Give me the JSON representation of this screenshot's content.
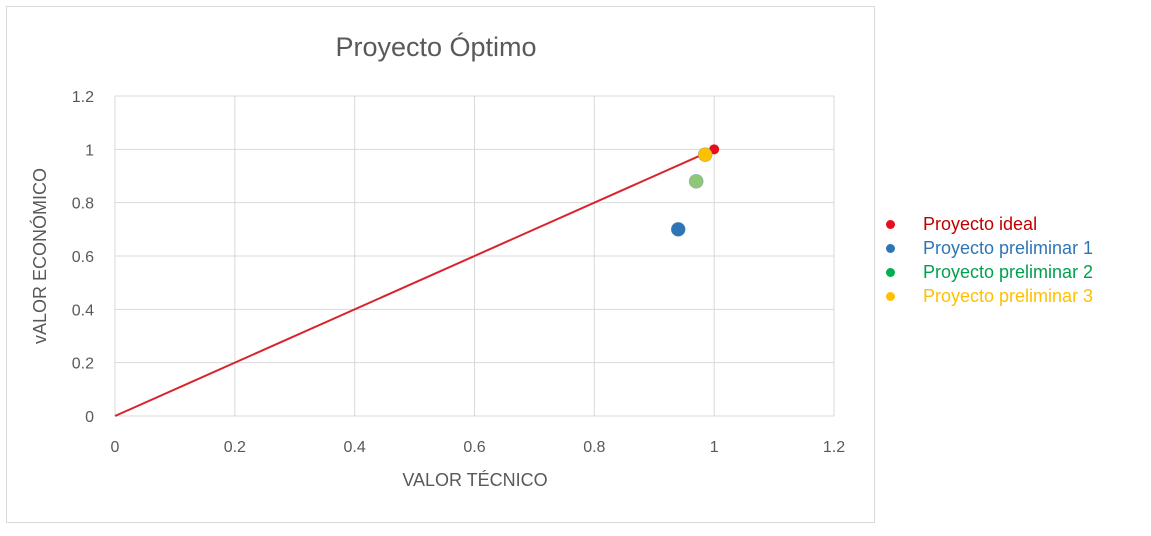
{
  "chart_data": {
    "type": "scatter",
    "title": "Proyecto Óptimo",
    "xlabel": "VALOR TÉCNICO",
    "ylabel": "vALOR ECONÓMICO",
    "xlim": [
      0,
      1.2
    ],
    "ylim": [
      0,
      1.2
    ],
    "x_ticks": [
      "0",
      "0.2",
      "0.4",
      "0.6",
      "0.8",
      "1",
      "1.2"
    ],
    "y_ticks": [
      "0",
      "0.2",
      "0.4",
      "0.6",
      "0.8",
      "1",
      "1.2"
    ],
    "grid": true,
    "legend_position": "right",
    "line": {
      "x": [
        0,
        0.98
      ],
      "y": [
        0,
        0.98
      ],
      "color": "#d9242b"
    },
    "series": [
      {
        "name": "Proyecto ideal",
        "x": [
          1.0
        ],
        "y": [
          1.0
        ],
        "color": "#e5101b",
        "size": "small"
      },
      {
        "name": "Proyecto preliminar 1",
        "x": [
          0.94
        ],
        "y": [
          0.7
        ],
        "color": "#2e75b6",
        "size": "large"
      },
      {
        "name": "Proyecto preliminar 2",
        "x": [
          0.97
        ],
        "y": [
          0.88
        ],
        "color": "#8fc679",
        "size": "large"
      },
      {
        "name": "Proyecto preliminar 3",
        "x": [
          0.985
        ],
        "y": [
          0.98
        ],
        "color": "#ffc000",
        "size": "large"
      }
    ]
  },
  "legend": [
    {
      "label": "Proyecto ideal",
      "color": "#e5101b",
      "text_color": "#c00000"
    },
    {
      "label": "Proyecto preliminar 1",
      "color": "#2e75b6",
      "text_color": "#2e75b6"
    },
    {
      "label": "Proyecto preliminar 2",
      "color": "#00b050",
      "text_color": "#00a050"
    },
    {
      "label": "Proyecto preliminar 3",
      "color": "#ffc000",
      "text_color": "#ffc000"
    }
  ]
}
